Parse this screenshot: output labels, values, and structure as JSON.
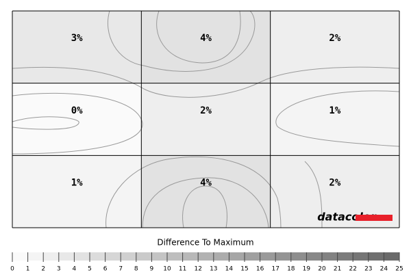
{
  "chart_data": {
    "type": "heatmap",
    "values": [
      [
        3,
        4,
        2
      ],
      [
        0,
        2,
        1
      ],
      [
        1,
        4,
        2
      ]
    ],
    "value_labels": [
      [
        "3%",
        "4%",
        "2%"
      ],
      [
        "0%",
        "2%",
        "1%"
      ],
      [
        "1%",
        "4%",
        "2%"
      ]
    ],
    "logo": "datacolor",
    "colorbar": {
      "label": "Difference To Maximum",
      "lim": [
        0,
        25
      ],
      "ticks": [
        0,
        1,
        2,
        3,
        4,
        5,
        6,
        7,
        8,
        9,
        10,
        11,
        12,
        13,
        14,
        15,
        16,
        17,
        18,
        19,
        20,
        21,
        22,
        23,
        24,
        25
      ]
    }
  }
}
